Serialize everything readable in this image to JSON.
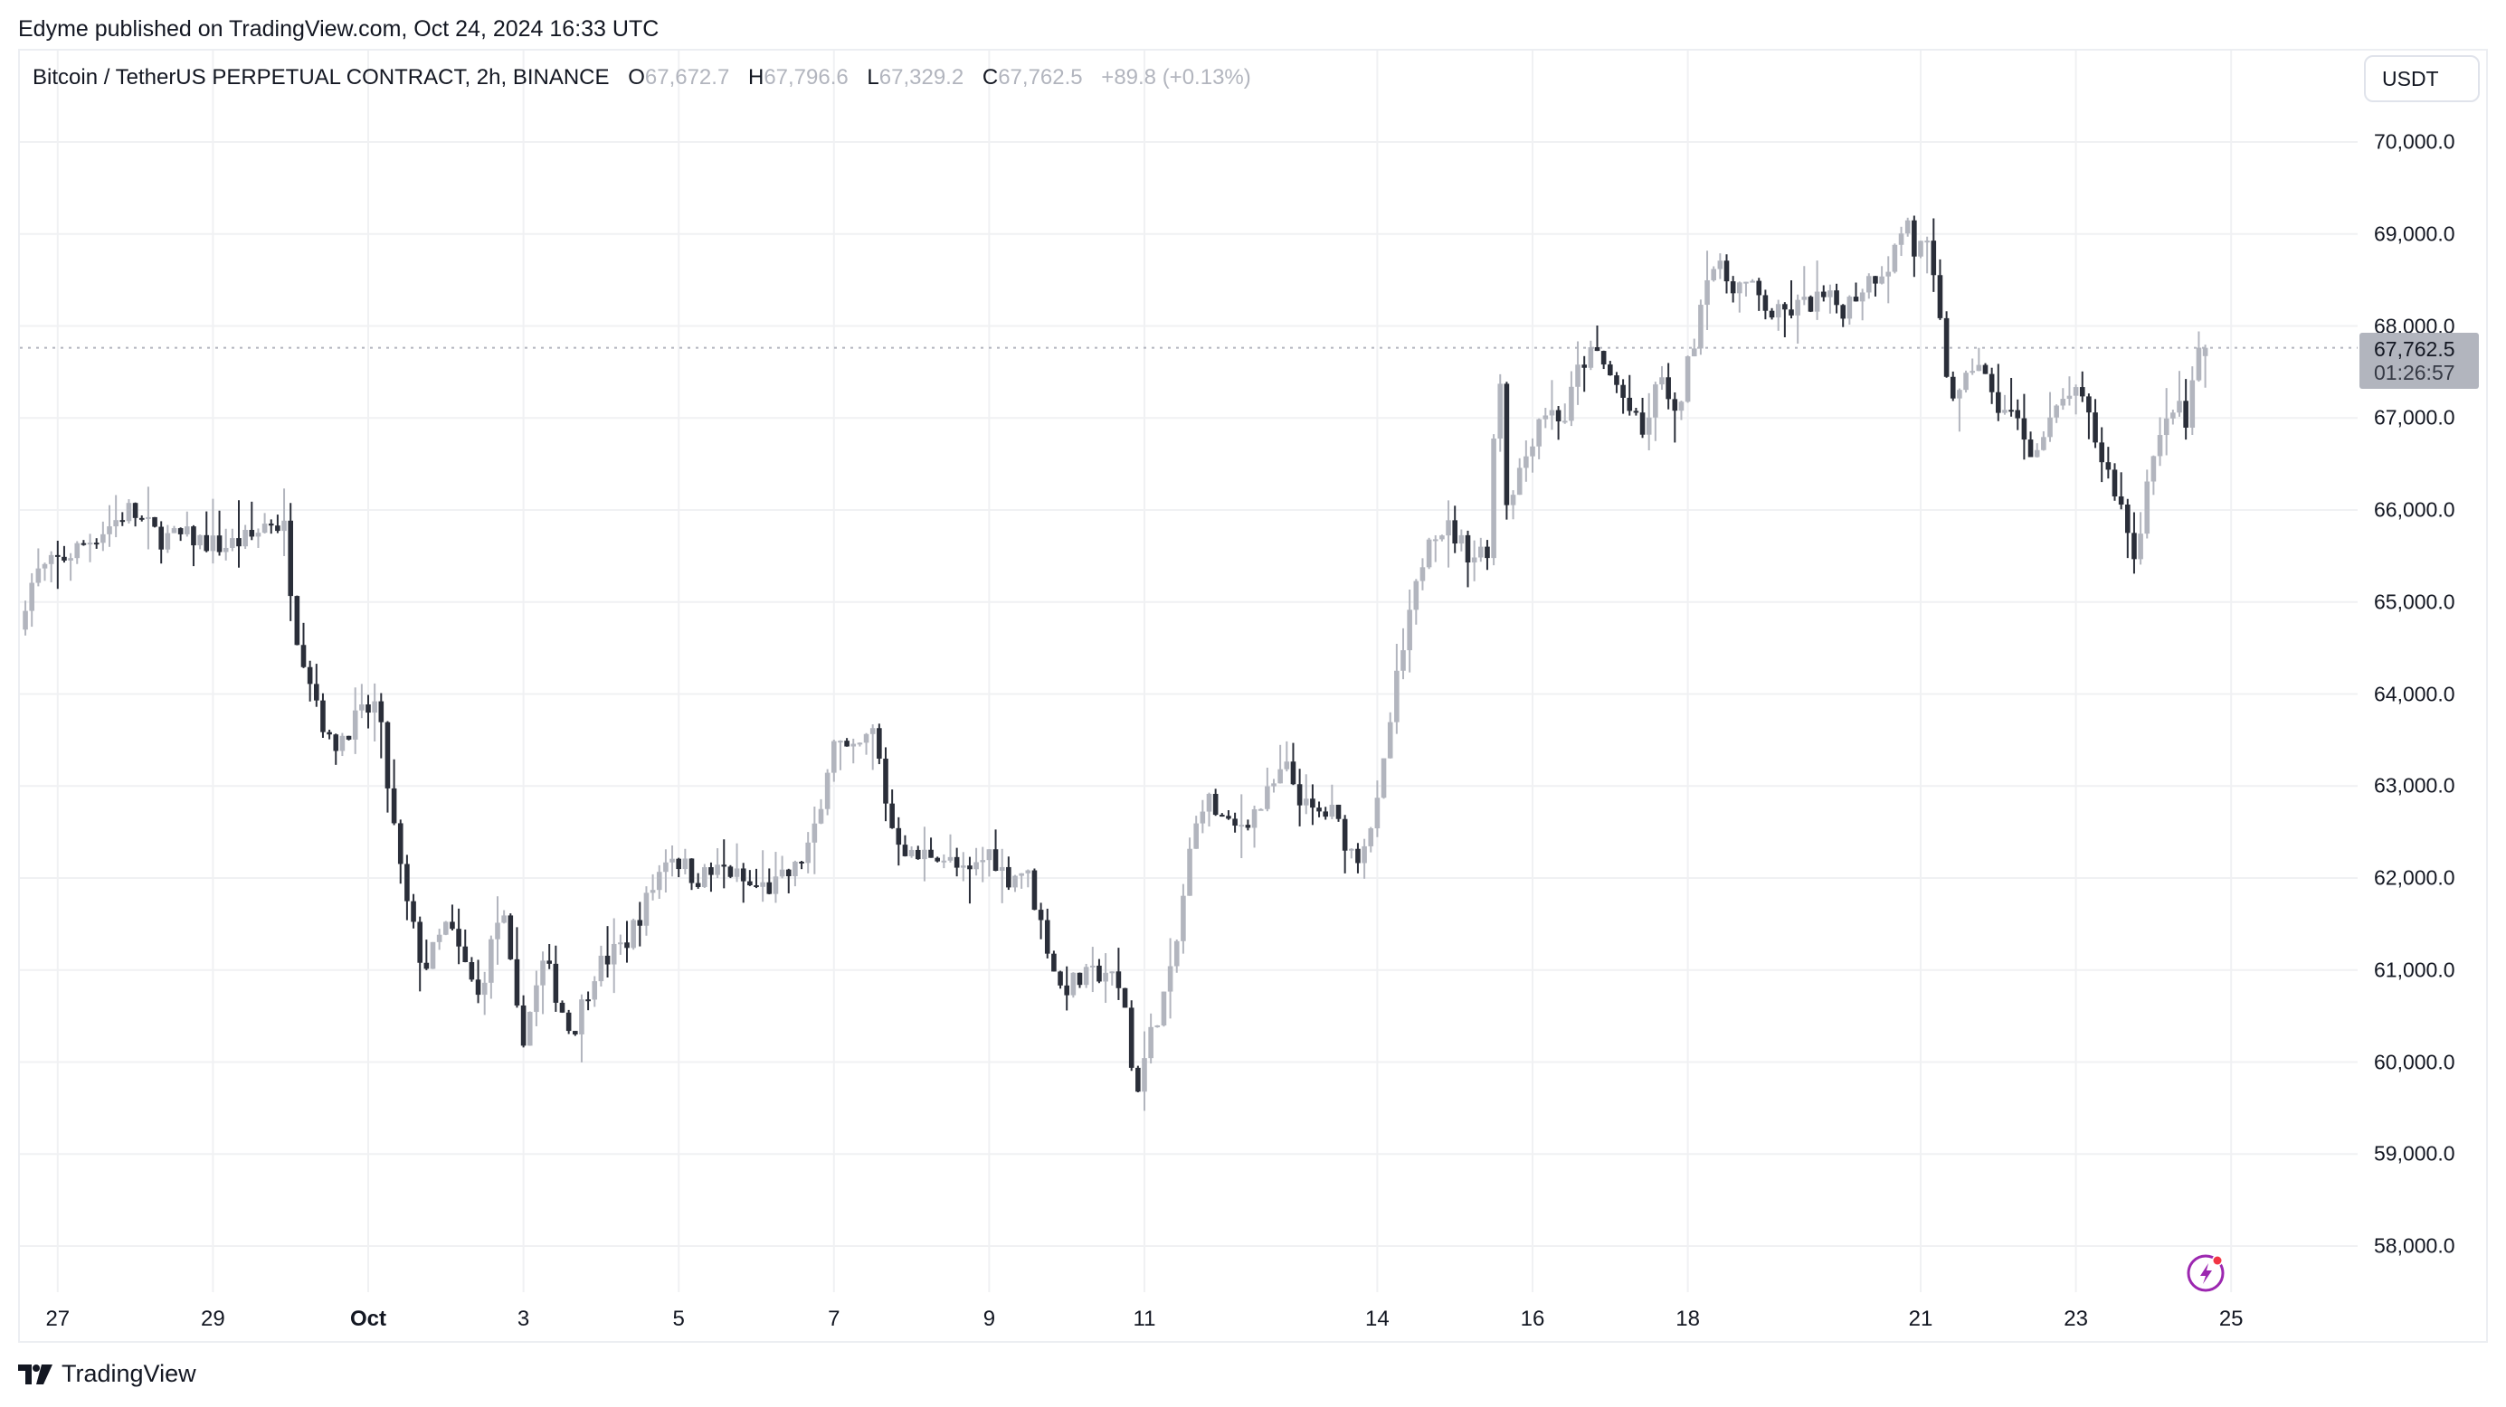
{
  "header": {
    "published": "Edyme published on TradingView.com, Oct 24, 2024 16:33 UTC"
  },
  "legend": {
    "symbol": "Bitcoin / TetherUS PERPETUAL CONTRACT, 2h, BINANCE",
    "open_label": "O",
    "open": "67,672.7",
    "high_label": "H",
    "high": "67,796.6",
    "low_label": "L",
    "low": "67,329.2",
    "close_label": "C",
    "close": "67,762.5",
    "change": "+89.8 (+0.13%)"
  },
  "price_axis": {
    "currency": "USDT",
    "ticks": [
      "70,000.0",
      "69,000.0",
      "68,000.0",
      "67,000.0",
      "66,000.0",
      "65,000.0",
      "64,000.0",
      "63,000.0",
      "62,000.0",
      "61,000.0",
      "60,000.0",
      "59,000.0",
      "58,000.0"
    ],
    "last_price": "67,762.5",
    "countdown": "01:26:57"
  },
  "time_axis": {
    "ticks": [
      {
        "label": "27",
        "day": -4,
        "bold": false
      },
      {
        "label": "29",
        "day": -2,
        "bold": false
      },
      {
        "label": "Oct",
        "day": 0,
        "bold": true
      },
      {
        "label": "3",
        "day": 2,
        "bold": false
      },
      {
        "label": "5",
        "day": 4,
        "bold": false
      },
      {
        "label": "7",
        "day": 6,
        "bold": false
      },
      {
        "label": "9",
        "day": 8,
        "bold": false
      },
      {
        "label": "11",
        "day": 10,
        "bold": false
      },
      {
        "label": "14",
        "day": 13,
        "bold": false
      },
      {
        "label": "16",
        "day": 15,
        "bold": false
      },
      {
        "label": "18",
        "day": 17,
        "bold": false
      },
      {
        "label": "21",
        "day": 20,
        "bold": false
      },
      {
        "label": "23",
        "day": 22,
        "bold": false
      },
      {
        "label": "25",
        "day": 24,
        "bold": false
      }
    ]
  },
  "branding": {
    "logo_text": "TradingView"
  },
  "colors": {
    "up": "#b2b5be",
    "down": "#2a2e39",
    "grid": "#f0f1f3",
    "border": "#eceef2",
    "bolt": "#9c27b0",
    "bolt_dot": "#f23645"
  },
  "chart_data": {
    "type": "candlestick",
    "title": "Bitcoin / TetherUS PERPETUAL CONTRACT, 2h, BINANCE",
    "xlabel": "",
    "ylabel": "USDT",
    "ylim": [
      57600,
      70800
    ],
    "grid": true,
    "interval": "2h",
    "start": "2024-09-26 12:00",
    "end": "2024-10-24 16:00",
    "last": {
      "open": 67672.7,
      "high": 67796.6,
      "low": 67329.2,
      "close": 67762.5,
      "change": 89.8,
      "change_pct": 0.13
    },
    "close_keyframes": [
      {
        "day": -4.5,
        "price": 64700
      },
      {
        "day": -4.2,
        "price": 65300
      },
      {
        "day": -3.8,
        "price": 65500
      },
      {
        "day": -3.3,
        "price": 65800
      },
      {
        "day": -3.0,
        "price": 66000
      },
      {
        "day": -2.6,
        "price": 65700
      },
      {
        "day": -2.2,
        "price": 65700
      },
      {
        "day": -1.8,
        "price": 65600
      },
      {
        "day": -1.4,
        "price": 65700
      },
      {
        "day": -1.2,
        "price": 65900
      },
      {
        "day": -1.0,
        "price": 65800
      },
      {
        "day": -0.85,
        "price": 64700
      },
      {
        "day": -0.6,
        "price": 64000
      },
      {
        "day": -0.4,
        "price": 63400
      },
      {
        "day": -0.1,
        "price": 63700
      },
      {
        "day": 0.2,
        "price": 63900
      },
      {
        "day": 0.35,
        "price": 62900
      },
      {
        "day": 0.55,
        "price": 61800
      },
      {
        "day": 0.8,
        "price": 61000
      },
      {
        "day": 1.1,
        "price": 61500
      },
      {
        "day": 1.5,
        "price": 60700
      },
      {
        "day": 1.8,
        "price": 61700
      },
      {
        "day": 2.05,
        "price": 60200
      },
      {
        "day": 2.35,
        "price": 61100
      },
      {
        "day": 2.7,
        "price": 60300
      },
      {
        "day": 3.0,
        "price": 61000
      },
      {
        "day": 3.4,
        "price": 61300
      },
      {
        "day": 3.7,
        "price": 61800
      },
      {
        "day": 3.95,
        "price": 62300
      },
      {
        "day": 4.3,
        "price": 62000
      },
      {
        "day": 4.7,
        "price": 62100
      },
      {
        "day": 5.0,
        "price": 61900
      },
      {
        "day": 5.3,
        "price": 61900
      },
      {
        "day": 5.6,
        "price": 62100
      },
      {
        "day": 5.9,
        "price": 62600
      },
      {
        "day": 6.05,
        "price": 63600
      },
      {
        "day": 6.3,
        "price": 63300
      },
      {
        "day": 6.6,
        "price": 63600
      },
      {
        "day": 6.8,
        "price": 62600
      },
      {
        "day": 7.1,
        "price": 62200
      },
      {
        "day": 7.4,
        "price": 62300
      },
      {
        "day": 7.8,
        "price": 62000
      },
      {
        "day": 8.1,
        "price": 62300
      },
      {
        "day": 8.3,
        "price": 62000
      },
      {
        "day": 8.55,
        "price": 62100
      },
      {
        "day": 8.75,
        "price": 61500
      },
      {
        "day": 9.0,
        "price": 60800
      },
      {
        "day": 9.3,
        "price": 60900
      },
      {
        "day": 9.6,
        "price": 61000
      },
      {
        "day": 9.85,
        "price": 60600
      },
      {
        "day": 9.95,
        "price": 59600
      },
      {
        "day": 10.2,
        "price": 60400
      },
      {
        "day": 10.45,
        "price": 61000
      },
      {
        "day": 10.65,
        "price": 62200
      },
      {
        "day": 10.85,
        "price": 62900
      },
      {
        "day": 11.2,
        "price": 62500
      },
      {
        "day": 11.6,
        "price": 62800
      },
      {
        "day": 11.9,
        "price": 63200
      },
      {
        "day": 12.2,
        "price": 62700
      },
      {
        "day": 12.5,
        "price": 62700
      },
      {
        "day": 12.8,
        "price": 62200
      },
      {
        "day": 13.1,
        "price": 62800
      },
      {
        "day": 13.3,
        "price": 64000
      },
      {
        "day": 13.5,
        "price": 64800
      },
      {
        "day": 13.75,
        "price": 65800
      },
      {
        "day": 14.0,
        "price": 65800
      },
      {
        "day": 14.3,
        "price": 65500
      },
      {
        "day": 14.5,
        "price": 65600
      },
      {
        "day": 14.65,
        "price": 67700
      },
      {
        "day": 14.75,
        "price": 66100
      },
      {
        "day": 15.0,
        "price": 66600
      },
      {
        "day": 15.2,
        "price": 67100
      },
      {
        "day": 15.5,
        "price": 67000
      },
      {
        "day": 15.7,
        "price": 67600
      },
      {
        "day": 15.9,
        "price": 67700
      },
      {
        "day": 16.2,
        "price": 67300
      },
      {
        "day": 16.5,
        "price": 66800
      },
      {
        "day": 16.75,
        "price": 67500
      },
      {
        "day": 16.9,
        "price": 66900
      },
      {
        "day": 17.15,
        "price": 67800
      },
      {
        "day": 17.35,
        "price": 68700
      },
      {
        "day": 17.6,
        "price": 68500
      },
      {
        "day": 17.9,
        "price": 68400
      },
      {
        "day": 18.2,
        "price": 68100
      },
      {
        "day": 18.5,
        "price": 68200
      },
      {
        "day": 18.8,
        "price": 68300
      },
      {
        "day": 19.1,
        "price": 68200
      },
      {
        "day": 19.4,
        "price": 68500
      },
      {
        "day": 19.7,
        "price": 68700
      },
      {
        "day": 19.9,
        "price": 69200
      },
      {
        "day": 20.0,
        "price": 68800
      },
      {
        "day": 20.15,
        "price": 68900
      },
      {
        "day": 20.3,
        "price": 68200
      },
      {
        "day": 20.45,
        "price": 67300
      },
      {
        "day": 20.6,
        "price": 67200
      },
      {
        "day": 20.8,
        "price": 67700
      },
      {
        "day": 21.0,
        "price": 67200
      },
      {
        "day": 21.3,
        "price": 67000
      },
      {
        "day": 21.55,
        "price": 66600
      },
      {
        "day": 21.8,
        "price": 67000
      },
      {
        "day": 22.0,
        "price": 67300
      },
      {
        "day": 22.2,
        "price": 67100
      },
      {
        "day": 22.4,
        "price": 66600
      },
      {
        "day": 22.6,
        "price": 66200
      },
      {
        "day": 22.75,
        "price": 65800
      },
      {
        "day": 22.85,
        "price": 65400
      },
      {
        "day": 23.0,
        "price": 66400
      },
      {
        "day": 23.2,
        "price": 66800
      },
      {
        "day": 23.35,
        "price": 67200
      },
      {
        "day": 23.5,
        "price": 66900
      },
      {
        "day": 23.6,
        "price": 67500
      },
      {
        "day": 23.65,
        "price": 67680
      },
      {
        "day": 23.69,
        "price": 67762
      }
    ]
  }
}
